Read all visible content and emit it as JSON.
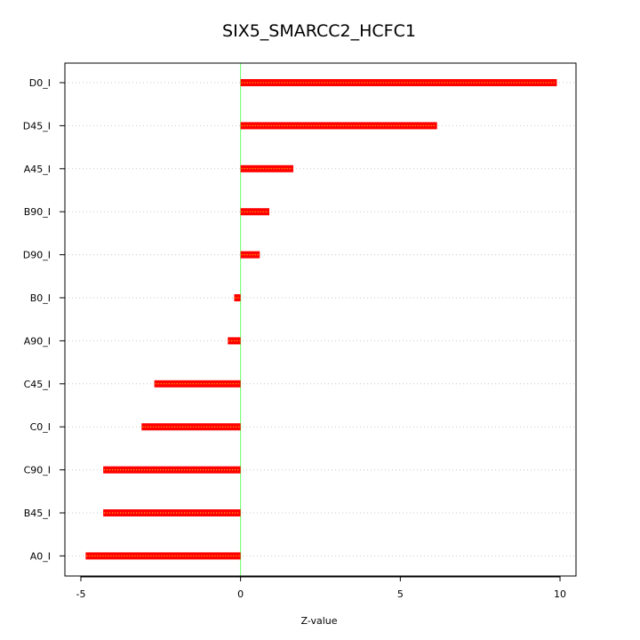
{
  "chart_data": {
    "type": "bar",
    "orientation": "horizontal",
    "title": "SIX5_SMARCC2_HCFC1",
    "xlabel": "Z-value",
    "ylabel": "",
    "categories": [
      "D0_I",
      "D45_I",
      "A45_I",
      "B90_I",
      "D90_I",
      "B0_I",
      "A90_I",
      "C45_I",
      "C0_I",
      "C90_I",
      "B45_I",
      "A0_I"
    ],
    "values": [
      9.9,
      6.15,
      1.65,
      0.9,
      0.6,
      -0.2,
      -0.4,
      -2.7,
      -3.1,
      -4.3,
      -4.3,
      -4.85
    ],
    "x_ticks": [
      -5,
      0,
      5,
      10
    ],
    "x_tick_labels": [
      "-5",
      "0",
      "5",
      "10"
    ],
    "xlim": [
      -5.5,
      10.5
    ],
    "grid": "horizontal dotted",
    "bar_color": "#ff0000",
    "bar_inner_dot_color": "#ffff00",
    "reference_line_color": "#66ff66",
    "reference_line_value": 0
  }
}
